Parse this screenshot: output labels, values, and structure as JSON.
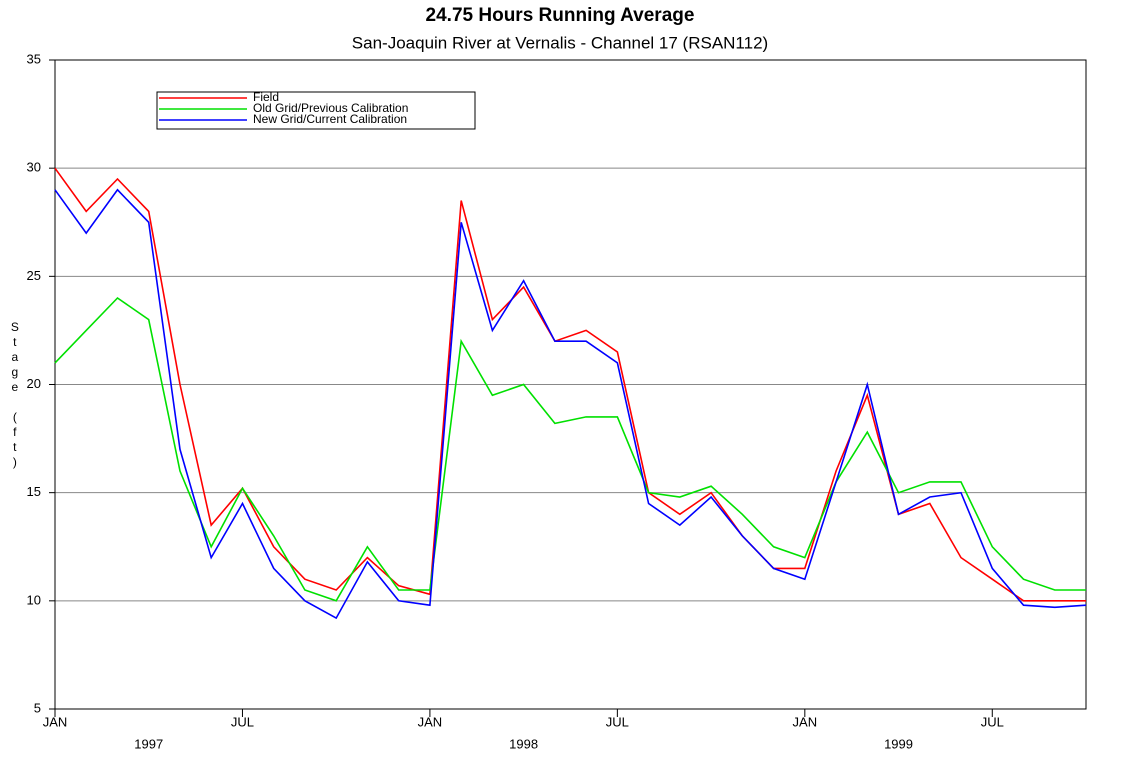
{
  "chart_data": {
    "type": "line",
    "title": "24.75 Hours Running Average",
    "subtitle": "San-Joaquin River at Vernalis - Channel 17 (RSAN112)",
    "y_label": "Stage (ft)",
    "x": [
      "1997-01",
      "1997-02",
      "1997-03",
      "1997-04",
      "1997-05",
      "1997-06",
      "1997-07",
      "1997-08",
      "1997-09",
      "1997-10",
      "1997-11",
      "1997-12",
      "1998-01",
      "1998-02",
      "1998-03",
      "1998-04",
      "1998-05",
      "1998-06",
      "1998-07",
      "1998-08",
      "1998-09",
      "1998-10",
      "1998-11",
      "1998-12",
      "1999-01",
      "1999-02",
      "1999-03",
      "1999-04",
      "1999-05",
      "1999-06",
      "1999-07",
      "1999-08",
      "1999-09",
      "1999-10"
    ],
    "series": [
      {
        "name": "Field",
        "color": "#ff0000",
        "values": [
          30,
          28,
          29.5,
          28,
          20,
          13.5,
          15.2,
          12.5,
          11,
          10.5,
          12,
          10.7,
          10.3,
          28.5,
          23,
          24.5,
          22,
          22.5,
          21.5,
          15,
          14,
          15,
          13,
          11.5,
          11.5,
          16,
          19.5,
          14,
          14.5,
          12,
          11,
          10,
          10,
          10
        ]
      },
      {
        "name": "Old Grid/Previous Calibration",
        "color": "#00e000",
        "values": [
          21,
          22.5,
          24,
          23,
          16,
          12.5,
          15.2,
          13,
          10.5,
          10,
          12.5,
          10.5,
          10.5,
          22,
          19.5,
          20,
          18.2,
          18.5,
          18.5,
          15,
          14.8,
          15.3,
          14,
          12.5,
          12,
          15.5,
          17.8,
          15,
          15.5,
          15.5,
          12.5,
          11,
          10.5,
          10.5
        ]
      },
      {
        "name": "New Grid/Current Calibration",
        "color": "#0000ff",
        "values": [
          29,
          27,
          29,
          27.5,
          17,
          12,
          14.5,
          11.5,
          10,
          9.2,
          11.8,
          10,
          9.8,
          27.5,
          22.5,
          24.8,
          22,
          22,
          21,
          14.5,
          13.5,
          14.8,
          13,
          11.5,
          11,
          15.5,
          20,
          14,
          14.8,
          15,
          11.5,
          9.8,
          9.7,
          9.8
        ]
      }
    ],
    "xlim": [
      "1997-01",
      "1999-10"
    ],
    "xticks": [
      {
        "value": "1997-01",
        "label": "JAN"
      },
      {
        "value": "1997-07",
        "label": "JUL"
      },
      {
        "value": "1998-01",
        "label": "JAN"
      },
      {
        "value": "1998-07",
        "label": "JUL"
      },
      {
        "value": "1999-01",
        "label": "JAN"
      },
      {
        "value": "1999-07",
        "label": "JUL"
      }
    ],
    "xtick_years": [
      {
        "value": "1997-04",
        "label": "1997"
      },
      {
        "value": "1998-04",
        "label": "1998"
      },
      {
        "value": "1999-04",
        "label": "1999"
      }
    ],
    "ylim": [
      5,
      35
    ],
    "yticks": [
      5,
      10,
      15,
      20,
      25,
      30,
      35
    ],
    "grid": true,
    "legend": "upper left"
  }
}
